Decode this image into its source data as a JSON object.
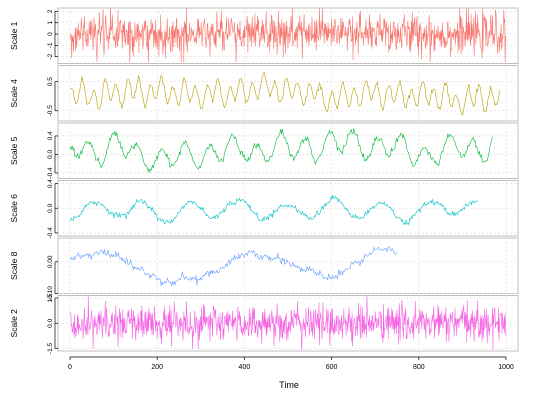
{
  "chart_data": {
    "type": "line",
    "title": "",
    "xlabel": "Time",
    "xlim": [
      0,
      1000
    ],
    "x_ticks": [
      0,
      200,
      400,
      600,
      800,
      1000
    ],
    "x_tick_labels": [
      "0",
      "200",
      "400",
      "600",
      "800",
      "1000"
    ],
    "grid": true,
    "legend": "none",
    "series": [
      {
        "name": "Scale 1",
        "color": "#F8766D",
        "x_start": 1,
        "x_end": 1000,
        "ylim": [
          -2.6,
          2.3
        ],
        "y_ticks": [
          -2,
          -1,
          0,
          1,
          2
        ],
        "y_tick_labels": [
          "-2",
          "-1",
          "0",
          "1",
          "2"
        ],
        "pattern": "noise",
        "amplitude": 0.9,
        "spike_max": 2.5
      },
      {
        "name": "Scale 4",
        "color": "#B79F00",
        "x_start": 1,
        "x_end": 985,
        "ylim": [
          -0.85,
          1.05
        ],
        "y_ticks": [
          -0.5,
          0.5
        ],
        "y_tick_labels": [
          "-0.5",
          "0.5"
        ],
        "pattern": "oscillation",
        "period": 26,
        "amplitude": 0.42
      },
      {
        "name": "Scale 5",
        "color": "#00BA38",
        "x_start": 1,
        "x_end": 970,
        "ylim": [
          -0.52,
          0.68
        ],
        "y_ticks": [
          -0.4,
          0.0,
          0.4
        ],
        "y_tick_labels": [
          "-0.4",
          "0.0",
          "0.4"
        ],
        "pattern": "oscillation",
        "period": 55,
        "amplitude": 0.3
      },
      {
        "name": "Scale 6",
        "color": "#00BFC4",
        "x_start": 1,
        "x_end": 935,
        "ylim": [
          -0.45,
          0.45
        ],
        "y_ticks": [
          -0.4,
          0.0,
          0.4
        ],
        "y_tick_labels": [
          "-0.4",
          "0.0",
          "0.4"
        ],
        "pattern": "oscillation",
        "period": 110,
        "amplitude": 0.17
      },
      {
        "name": "Scale 8",
        "color": "#619CFF",
        "x_start": 1,
        "x_end": 750,
        "ylim": [
          -0.1,
          0.075
        ],
        "y_ticks": [
          -0.1,
          0.0
        ],
        "y_tick_labels": [
          "-0.10",
          "0.00"
        ],
        "pattern": "wave",
        "period": 340,
        "amplitude": 0.045
      },
      {
        "name": "Scale 2",
        "color": "#F564E3",
        "x_start": 1,
        "x_end": 1000,
        "ylim": [
          -1.65,
          1.65
        ],
        "y_ticks": [
          -1.5,
          0.0,
          1.5
        ],
        "y_tick_labels": [
          "-1.5",
          "0.0",
          "1.5"
        ],
        "pattern": "noise",
        "amplitude": 0.55,
        "spike_max": 1.6
      }
    ]
  }
}
